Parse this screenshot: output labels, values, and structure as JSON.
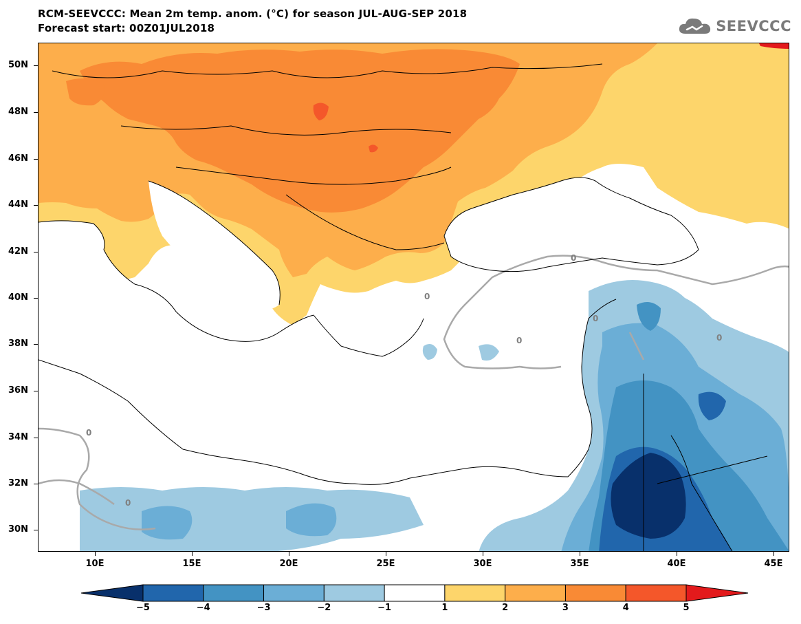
{
  "header": {
    "title_line1": "RCM-SEEVCCC: Mean 2m temp. anom. (°C) for season JUL-AUG-SEP 2018",
    "title_line2": "Forecast start: 00Z01JUL2018"
  },
  "logo": {
    "text": "SEEVCCC",
    "icon": "cloud-icon"
  },
  "map": {
    "lat_labels": [
      "50N",
      "48N",
      "46N",
      "44N",
      "42N",
      "40N",
      "38N",
      "36N",
      "34N",
      "32N",
      "30N"
    ],
    "lon_labels": [
      "10E",
      "15E",
      "20E",
      "25E",
      "30E",
      "35E",
      "40E",
      "45E"
    ],
    "contour_labels": [
      "0",
      "0",
      "0",
      "0",
      "0",
      "0",
      "0"
    ]
  },
  "colorbar": {
    "labels": [
      "−5",
      "−4",
      "−3",
      "−2",
      "−1",
      "1",
      "2",
      "3",
      "4",
      "5"
    ],
    "colors": [
      "#08306b",
      "#2166ac",
      "#4393c3",
      "#6baed6",
      "#9ecae1",
      "#ffffff",
      "#fdd56b",
      "#fdae4b",
      "#f98a35",
      "#f4572a",
      "#e31a1c"
    ]
  },
  "colors": {
    "anom_plus1": "#fdd56b",
    "anom_plus2": "#fdae4b",
    "anom_plus3": "#f98a35",
    "anom_plus4": "#f4572a",
    "anom_minus1": "#9ecae1",
    "anom_minus2": "#6baed6",
    "anom_minus3": "#4393c3",
    "anom_minus4": "#2166ac",
    "anom_minus5": "#08306b",
    "contour_zero": "#a9a9a9"
  }
}
